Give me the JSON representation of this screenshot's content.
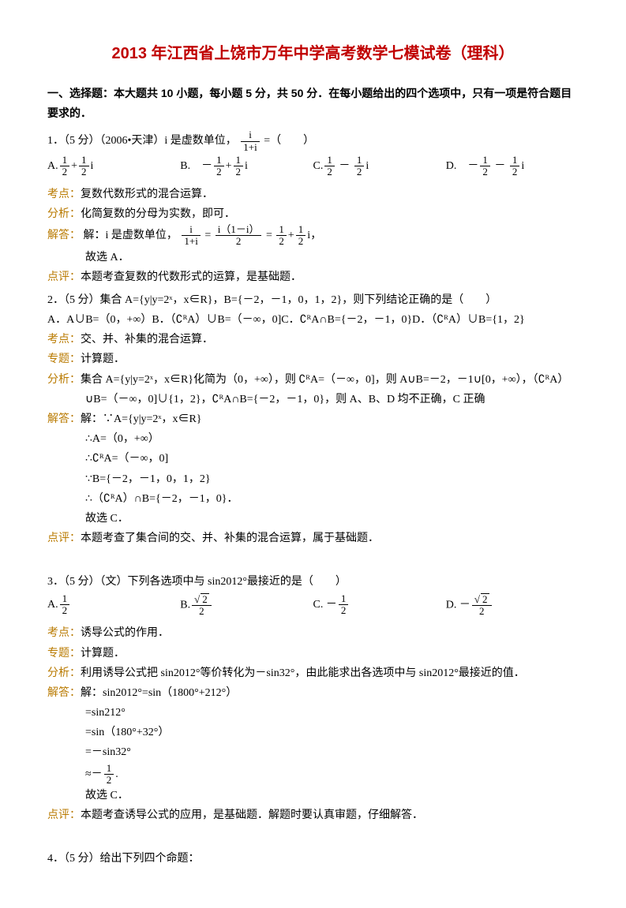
{
  "title": "2013 年江西省上饶市万年中学高考数学七模试卷（理科）",
  "section_heading": "一、选择题：本大题共 10 小题，每小题 5 分，共 50 分．在每小题给出的四个选项中，只有一项是符合题目要求的．",
  "q1": {
    "stem_prefix": "1．（5 分）（2006•天津）i 是虚数单位，",
    "stem_suffix": "=（　　）",
    "frac_num": "i",
    "frac_den": "1+i",
    "A_pre": "A.",
    "A_rest": "i",
    "B_pre": "B.　－",
    "B_rest": "i",
    "C_pre": "C.",
    "C_mid": " － ",
    "C_rest": "i",
    "D_pre": "D.　－",
    "D_mid": " － ",
    "D_rest": "i",
    "kd_l": "考点：",
    "kd": "复数代数形式的混合运算．",
    "fx_l": "分析：",
    "fx": "化简复数的分母为实数，即可．",
    "jd_l": "解答：",
    "jd_pre": "解：i 是虚数单位，",
    "jd_mid1": "=",
    "jd_num2": "i（1－i）",
    "jd_den2": "2",
    "jd_mid2": "=",
    "jd_rest": "，",
    "gx": "故选 A．",
    "dp_l": "点评：",
    "dp": "本题考查复数的代数形式的运算，是基础题．"
  },
  "q2": {
    "stem": "2．（5 分）集合 A={y|y=2ˣ，x∈R}，B={－2，－1，0，1，2}，则下列结论正确的是（　　）",
    "A": "A．A∪B=（0，+∞）B．（∁ᴿA）∪B=（－∞，0]C．∁ᴿA∩B={－2，－1，0}D．（∁ᴿA）∪B={1，2}",
    "kd_l": "考点：",
    "kd": "交、并、补集的混合运算．",
    "zt_l": "专题：",
    "zt": "计算题．",
    "fx_l": "分析：",
    "fx1": "集合 A={y|y=2ˣ，x∈R}化简为（0，+∞），则 ∁ᴿA=（－∞，0]，则 A∪B=－2，－1∪[0，+∞），（∁ᴿA）",
    "fx2": "∪B=（－∞，0]∪{1，2}，∁ᴿA∩B={－2，－1，0}，则 A、B、D 均不正确，C 正确",
    "jd_l": "解答：",
    "jd1": "解：∵A={y|y=2ˣ，x∈R}",
    "jd2": "∴A=（0，+∞）",
    "jd3": "∴∁ᴿA=（－∞，0]",
    "jd4": "∵B={－2，－1，0，1，2}",
    "jd5": "∴（∁ᴿA）∩B={－2，－1，0}．",
    "jd6": "故选 C．",
    "dp_l": "点评：",
    "dp": "本题考查了集合间的交、并、补集的混合运算，属于基础题．"
  },
  "q3": {
    "stem": "3．（5 分）（文）下列各选项中与 sin2012°最接近的是（　　）",
    "A_pre": "A.",
    "B_pre": "B.",
    "C_pre": "C. －",
    "D_pre": "D. －",
    "kd_l": "考点：",
    "kd": "诱导公式的作用．",
    "zt_l": "专题：",
    "zt": "计算题．",
    "fx_l": "分析：",
    "fx": "利用诱导公式把 sin2012°等价转化为－sin32°，由此能求出各选项中与 sin2012°最接近的值．",
    "jd_l": "解答：",
    "jd1": "解：sin2012°=sin（1800°+212°）",
    "jd2": "=sin212°",
    "jd3": "=sin（180°+32°）",
    "jd4": "=－sin32°",
    "jd5_pre": "≈－",
    "jd5_post": ".",
    "jd6": "故选 C．",
    "dp_l": "点评：",
    "dp": "本题考查诱导公式的应用，是基础题．解题时要认真审题，仔细解答．"
  },
  "q4": {
    "stem": "4．（5 分）给出下列四个命题："
  },
  "frac12_num": "1",
  "frac12_den": "2",
  "sqrt2": "2"
}
